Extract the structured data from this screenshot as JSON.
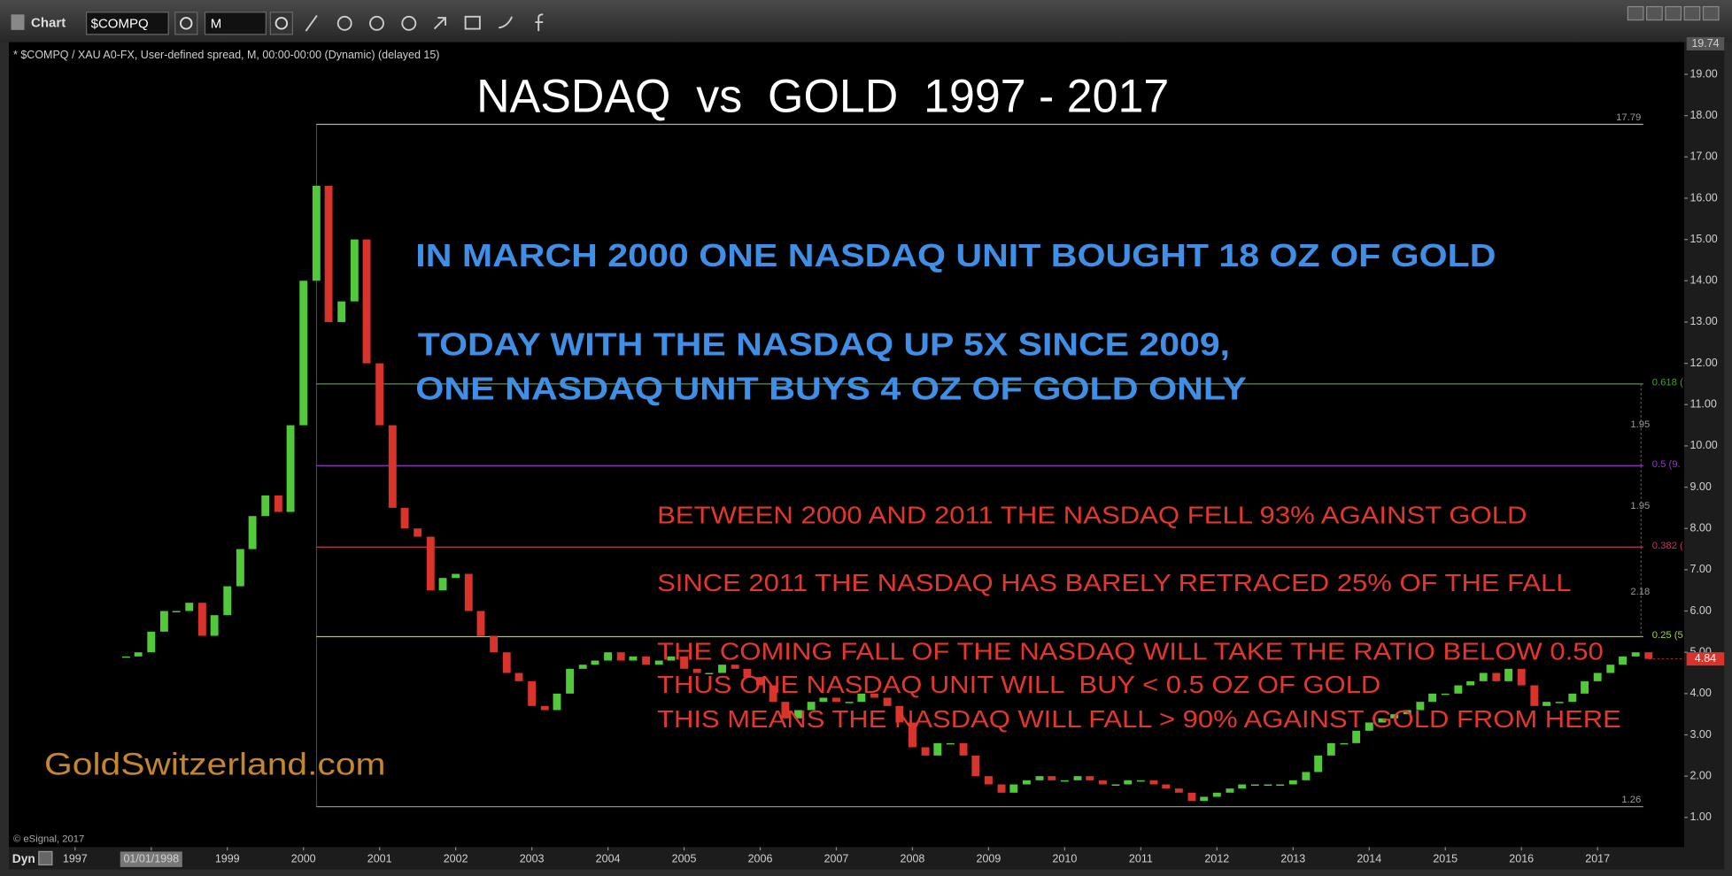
{
  "chart_data": {
    "type": "candlestick",
    "title": "NASDAQ  vs  GOLD  1997 - 2017",
    "subtitle": "* $COMPQ / XAU A0-FX, User-defined spread, M, 00:00-00:00 (Dynamic) (delayed 15)",
    "annotations": [
      "IN MARCH 2000 ONE NASDAQ UNIT BOUGHT 18 OZ OF GOLD",
      "TODAY WITH THE NASDAQ UP 5X SINCE 2009,",
      "ONE NASDAQ UNIT BUYS 4 OZ OF GOLD ONLY",
      "BETWEEN 2000 AND 2011 THE NASDAQ FELL 93% AGAINST GOLD",
      "SINCE 2011 THE NASDAQ HAS BARELY RETRACED 25% OF THE FALL",
      "THE COMING FALL OF THE NASDAQ WILL TAKE THE RATIO BELOW 0.50",
      "THUS ONE NASDAQ UNIT WILL  BUY < 0.5 OZ OF GOLD",
      "THIS MEANS THE NASDAQ WILL FALL > 90% AGAINST GOLD FROM HERE"
    ],
    "watermark": "GoldSwitzerland.com",
    "credit": "© eSignal, 2017",
    "x": [
      1997.67,
      1997.83,
      1998.0,
      1998.17,
      1998.33,
      1998.5,
      1998.67,
      1998.83,
      1999.0,
      1999.17,
      1999.33,
      1999.5,
      1999.67,
      1999.83,
      2000.0,
      2000.17,
      2000.33,
      2000.5,
      2000.67,
      2000.83,
      2001.0,
      2001.17,
      2001.33,
      2001.5,
      2001.67,
      2001.83,
      2002.0,
      2002.17,
      2002.33,
      2002.5,
      2002.67,
      2002.83,
      2003.0,
      2003.17,
      2003.33,
      2003.5,
      2003.67,
      2003.83,
      2004.0,
      2004.17,
      2004.33,
      2004.5,
      2004.67,
      2004.83,
      2005.0,
      2005.17,
      2005.33,
      2005.5,
      2005.67,
      2005.83,
      2006.0,
      2006.17,
      2006.33,
      2006.5,
      2006.67,
      2006.83,
      2007.0,
      2007.17,
      2007.33,
      2007.5,
      2007.67,
      2007.83,
      2008.0,
      2008.17,
      2008.33,
      2008.5,
      2008.67,
      2008.83,
      2009.0,
      2009.17,
      2009.33,
      2009.5,
      2009.67,
      2009.83,
      2010.0,
      2010.17,
      2010.33,
      2010.5,
      2010.67,
      2010.83,
      2011.0,
      2011.17,
      2011.33,
      2011.5,
      2011.67,
      2011.83,
      2012.0,
      2012.17,
      2012.33,
      2012.5,
      2012.67,
      2012.83,
      2013.0,
      2013.17,
      2013.33,
      2013.5,
      2013.67,
      2013.83,
      2014.0,
      2014.17,
      2014.33,
      2014.5,
      2014.67,
      2014.83,
      2015.0,
      2015.17,
      2015.33,
      2015.5,
      2015.67,
      2015.83,
      2016.0,
      2016.17,
      2016.33,
      2016.5,
      2016.67,
      2016.83,
      2017.0,
      2017.17,
      2017.33,
      2017.5,
      2017.67
    ],
    "values": [
      4.9,
      5.0,
      5.5,
      6.0,
      6.0,
      6.2,
      5.4,
      5.9,
      6.6,
      7.5,
      8.3,
      8.8,
      8.4,
      10.5,
      14.0,
      16.3,
      13.0,
      13.5,
      15.0,
      12.0,
      10.5,
      8.5,
      8.0,
      7.8,
      6.5,
      6.8,
      6.9,
      6.0,
      5.4,
      5.0,
      4.5,
      4.3,
      3.7,
      3.6,
      4.0,
      4.6,
      4.7,
      4.8,
      5.0,
      4.8,
      4.9,
      4.7,
      4.8,
      4.9,
      4.6,
      4.5,
      4.5,
      4.7,
      4.6,
      4.4,
      4.2,
      3.8,
      3.4,
      3.6,
      3.8,
      3.9,
      3.8,
      3.8,
      4.0,
      3.9,
      3.7,
      3.3,
      2.7,
      2.5,
      2.8,
      2.8,
      2.5,
      2.0,
      1.8,
      1.6,
      1.8,
      1.9,
      2.0,
      1.9,
      1.9,
      2.0,
      1.9,
      1.8,
      1.8,
      1.9,
      1.9,
      1.8,
      1.7,
      1.6,
      1.4,
      1.5,
      1.6,
      1.7,
      1.8,
      1.8,
      1.8,
      1.8,
      1.9,
      2.1,
      2.5,
      2.8,
      2.8,
      3.1,
      3.3,
      3.4,
      3.5,
      3.6,
      3.8,
      4.0,
      4.0,
      4.2,
      4.3,
      4.5,
      4.3,
      4.6,
      4.2,
      3.7,
      3.8,
      3.8,
      4.0,
      4.3,
      4.5,
      4.7,
      4.9,
      5.0,
      4.84
    ],
    "up_color": "#52c93a",
    "down_color": "#d9342b",
    "xlim": [
      1996.13,
      2018.14
    ],
    "xticks": [
      1997,
      {
        "value": 1998,
        "label": "01/01/1998"
      },
      1999,
      2000,
      2001,
      2002,
      2003,
      2004,
      2005,
      2006,
      2007,
      2008,
      2009,
      2010,
      2011,
      2012,
      2013,
      2014,
      2015,
      2016,
      2017
    ],
    "ylim": [
      0.28,
      19.78
    ],
    "yticks": [
      {
        "value": 1,
        "label": "1.00"
      },
      {
        "value": 2,
        "label": "2.00"
      },
      {
        "value": 3,
        "label": "3.00"
      },
      {
        "value": 4,
        "label": "4.00"
      },
      {
        "value": 5,
        "label": "5.00"
      },
      {
        "value": 6,
        "label": "6.00"
      },
      {
        "value": 7,
        "label": "7.00"
      },
      {
        "value": 8,
        "label": "8.00"
      },
      {
        "value": 9,
        "label": "9.00"
      },
      {
        "value": 10,
        "label": "10.00"
      },
      {
        "value": 11,
        "label": "11.00"
      },
      {
        "value": 12,
        "label": "12.00"
      },
      {
        "value": 13,
        "label": "13.00"
      },
      {
        "value": 14,
        "label": "14.00"
      },
      {
        "value": 15,
        "label": "15.00"
      },
      {
        "value": 16,
        "label": "16.00"
      },
      {
        "value": 17,
        "label": "17.00"
      },
      {
        "value": 18,
        "label": "18.00"
      },
      {
        "value": 19,
        "label": "19.00"
      }
    ],
    "grid": false,
    "top_marker": 19.74,
    "fib_range": [
      2000.17,
      2017.6
    ],
    "fib_levels": [
      {
        "value": 17.79,
        "color": "#b0b0b0"
      },
      {
        "name": "0.618 (",
        "value": 11.5,
        "color": "#4f9a3c"
      },
      {
        "name": "0.5 (9.",
        "value": 9.52,
        "color": "#9a35d4"
      },
      {
        "name": "0.382 (",
        "value": 7.55,
        "color": "#c4306c"
      },
      {
        "name": "0.25 (5",
        "value": 5.38,
        "color": "#a6d03a"
      },
      {
        "value": 1.26,
        "color": "#8a8a8a"
      }
    ],
    "fib_gaps": [
      1.95,
      1.95,
      2.18
    ]
  },
  "toolbar": {
    "app": "Chart",
    "symbol": "$COMPQ",
    "interval": "M"
  },
  "status_bar": {
    "mode": "Dyn"
  }
}
